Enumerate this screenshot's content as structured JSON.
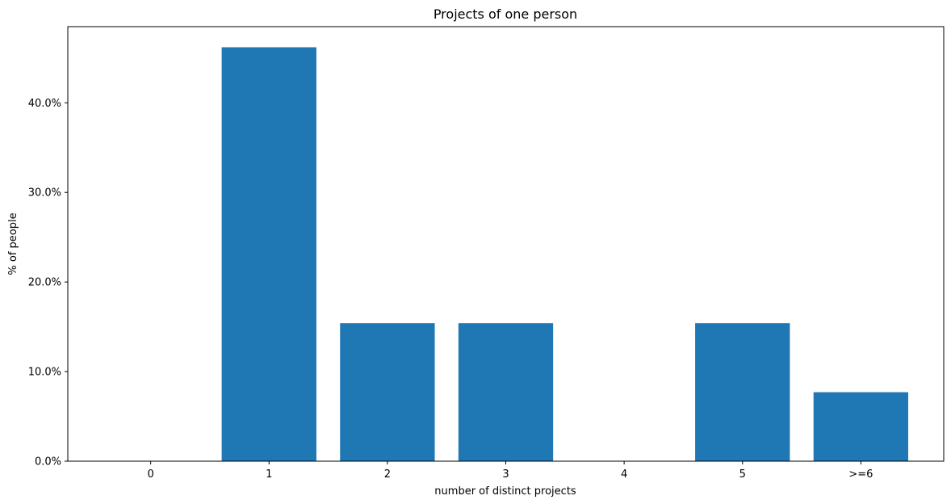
{
  "chart_data": {
    "type": "bar",
    "title": "Projects of one person",
    "xlabel": "number of distinct projects",
    "ylabel": "% of people",
    "categories": [
      "0",
      "1",
      "2",
      "3",
      "4",
      "5",
      ">=6"
    ],
    "values": [
      0.0,
      46.2,
      15.4,
      15.4,
      0.0,
      15.4,
      7.7
    ],
    "ylim": [
      0,
      48.5
    ],
    "yticks": [
      0,
      10,
      20,
      30,
      40
    ],
    "ytick_labels": [
      "0.0%",
      "10.0%",
      "20.0%",
      "30.0%",
      "40.0%"
    ],
    "bar_color": "#1f77b4",
    "grid": false,
    "legend": false
  }
}
